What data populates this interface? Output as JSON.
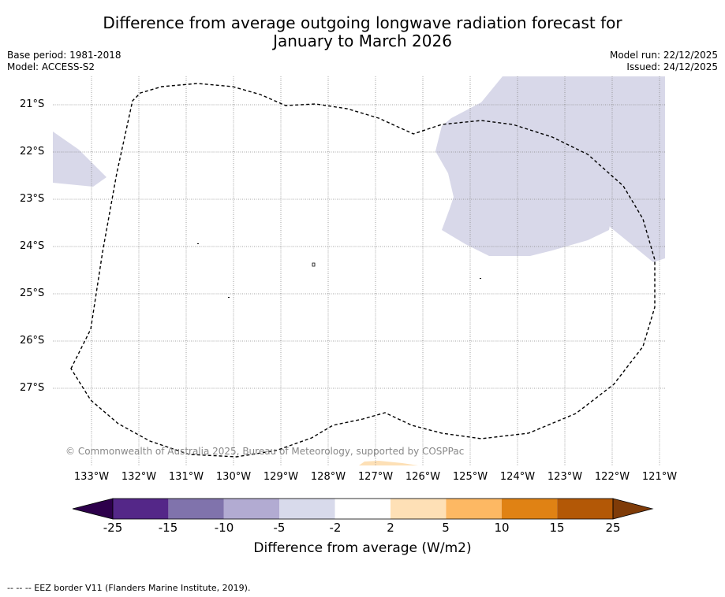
{
  "title": {
    "line1": "Difference from average outgoing longwave radiation forecast for",
    "line2": "January to March 2026"
  },
  "meta": {
    "base_period": "Base period: 1981-2018",
    "model": "Model: ACCESS-S2",
    "model_run": "Model run: 22/12/2025",
    "issued": "Issued: 24/12/2025"
  },
  "map": {
    "lat_labels": [
      "21°S",
      "22°S",
      "23°S",
      "24°S",
      "25°S",
      "26°S",
      "27°S"
    ],
    "lon_labels": [
      "133°W",
      "132°W",
      "131°W",
      "130°W",
      "129°W",
      "128°W",
      "127°W",
      "126°W",
      "125°W",
      "124°W",
      "123°W",
      "122°W",
      "121°W"
    ],
    "copyright": "© Commonwealth of Australia 2025, Bureau of Meteorology, supported by COSPPac",
    "colors": {
      "light_lavender": "#d8d8e9",
      "light_peach": "#fde0b6"
    }
  },
  "colorbar": {
    "ticks": [
      "-25",
      "-15",
      "-10",
      "-5",
      "-2",
      "2",
      "5",
      "10",
      "15",
      "25"
    ],
    "label": "Difference from average (W/m2)",
    "colors": {
      "under": "#2d004b",
      "bin1": "#542788",
      "bin2": "#8073ac",
      "bin3": "#b2abd2",
      "bin4": "#d8daeb",
      "bin5": "#ffffff",
      "bin6": "#fee0b6",
      "bin7": "#fdb863",
      "bin8": "#e08214",
      "bin9": "#b35806",
      "over": "#7f3b08"
    }
  },
  "footer": "--  --  -- EEZ border V11 (Flanders Marine Institute, 2019)."
}
